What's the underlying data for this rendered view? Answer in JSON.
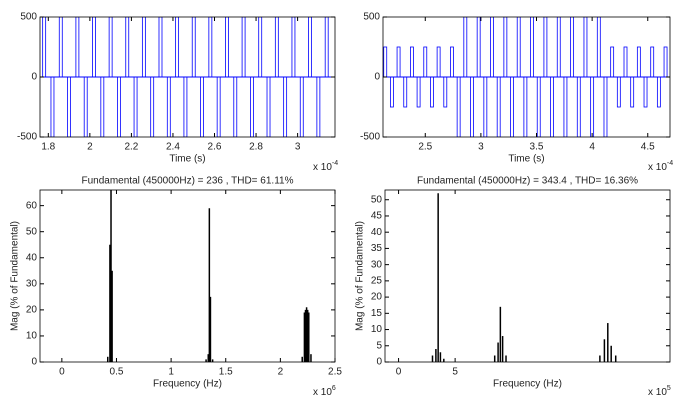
{
  "chart_data": [
    {
      "type": "pulse",
      "color": "#0000ff",
      "xlabel": "Time (s)",
      "x_exponent": {
        "base": "x 10",
        "power": "-4"
      },
      "xlim": [
        1.76,
        3.18
      ],
      "ylim": [
        -500,
        500
      ],
      "xticks": [
        1.8,
        2,
        2.2,
        2.4,
        2.6,
        2.8,
        3
      ],
      "yticks": [
        -500,
        0,
        500
      ],
      "x": [
        1.78,
        1.82,
        1.86,
        1.9,
        1.94,
        1.98,
        2.02,
        2.06,
        2.1,
        2.14,
        2.18,
        2.22,
        2.26,
        2.3,
        2.34,
        2.38,
        2.42,
        2.46,
        2.5,
        2.54,
        2.58,
        2.62,
        2.66,
        2.7,
        2.74,
        2.78,
        2.82,
        2.86,
        2.9,
        2.94,
        2.98,
        3.02,
        3.06,
        3.1,
        3.14
      ],
      "values": [
        500,
        -500,
        500,
        -500,
        500,
        -500,
        500,
        -500,
        500,
        -500,
        500,
        -500,
        500,
        -500,
        500,
        -500,
        500,
        -500,
        500,
        -500,
        500,
        -500,
        500,
        -500,
        500,
        -500,
        500,
        -500,
        500,
        -500,
        500,
        -500,
        500,
        -500,
        500
      ]
    },
    {
      "type": "pulse",
      "color": "#0000ff",
      "xlabel": "Time (s)",
      "x_exponent": {
        "base": "x 10",
        "power": "-4"
      },
      "xlim": [
        2.12,
        4.7
      ],
      "ylim": [
        -500,
        500
      ],
      "xticks": [
        2.5,
        3,
        3.5,
        4,
        4.5
      ],
      "yticks": [
        -500,
        0,
        500
      ],
      "x": [
        2.14,
        2.2,
        2.26,
        2.32,
        2.38,
        2.44,
        2.5,
        2.56,
        2.62,
        2.68,
        2.74,
        2.8,
        2.86,
        2.92,
        2.98,
        3.04,
        3.1,
        3.16,
        3.22,
        3.28,
        3.34,
        3.4,
        3.46,
        3.52,
        3.58,
        3.64,
        3.7,
        3.76,
        3.82,
        3.88,
        3.94,
        4,
        4.06,
        4.12,
        4.18,
        4.24,
        4.3,
        4.36,
        4.42,
        4.48,
        4.54,
        4.6,
        4.66
      ],
      "values": [
        250,
        -250,
        250,
        -250,
        250,
        -250,
        250,
        -250,
        250,
        -250,
        250,
        -500,
        500,
        -500,
        500,
        -500,
        500,
        -500,
        500,
        -500,
        500,
        -500,
        500,
        -500,
        500,
        -500,
        500,
        -500,
        500,
        -500,
        500,
        -500,
        500,
        -500,
        250,
        -250,
        250,
        -250,
        250,
        -250,
        250,
        -250,
        250
      ]
    },
    {
      "type": "stem",
      "color": "#000000",
      "title": "Fundamental (450000Hz) = 236 , THD= 61.11%",
      "xlabel": "Frequency (Hz)",
      "ylabel": "Mag (% of Fundamental)",
      "x_exponent": {
        "base": "x 10",
        "power": "6"
      },
      "xlim": [
        -0.2,
        2.5
      ],
      "ylim": [
        0,
        66
      ],
      "xticks": [
        0,
        0.5,
        1,
        1.5,
        2,
        2.5
      ],
      "yticks": [
        0,
        10,
        20,
        30,
        40,
        50,
        60
      ],
      "x": [
        0.42,
        0.44,
        0.45,
        0.46,
        1.32,
        1.34,
        1.35,
        1.36,
        1.38,
        2.2,
        2.22,
        2.23,
        2.24,
        2.25,
        2.26,
        2.28
      ],
      "values": [
        2,
        45,
        66,
        35,
        1,
        3,
        59,
        25,
        1,
        2,
        19,
        20,
        21,
        20,
        19,
        3
      ]
    },
    {
      "type": "stem",
      "color": "#000000",
      "title": "Fundamental (450000Hz) = 343.4 , THD= 16.36%",
      "xlabel": "Frequency (Hz)",
      "ylabel": "Mag (% of Fundamental)",
      "x_exponent": {
        "base": "x 10",
        "power": "5"
      },
      "xlim": [
        -1.2,
        24
      ],
      "ylim": [
        0,
        53
      ],
      "xticks": [
        0,
        5
      ],
      "yticks": [
        0,
        5,
        10,
        15,
        20,
        25,
        30,
        35,
        40,
        45,
        50
      ],
      "x": [
        3.0,
        3.3,
        3.5,
        3.7,
        4.0,
        8.5,
        8.8,
        9.0,
        9.2,
        9.5,
        17.8,
        18.2,
        18.5,
        18.8,
        19.2
      ],
      "values": [
        2,
        4,
        52,
        3,
        1,
        2,
        6,
        17,
        8,
        2,
        2,
        7,
        12,
        5,
        2
      ]
    }
  ]
}
